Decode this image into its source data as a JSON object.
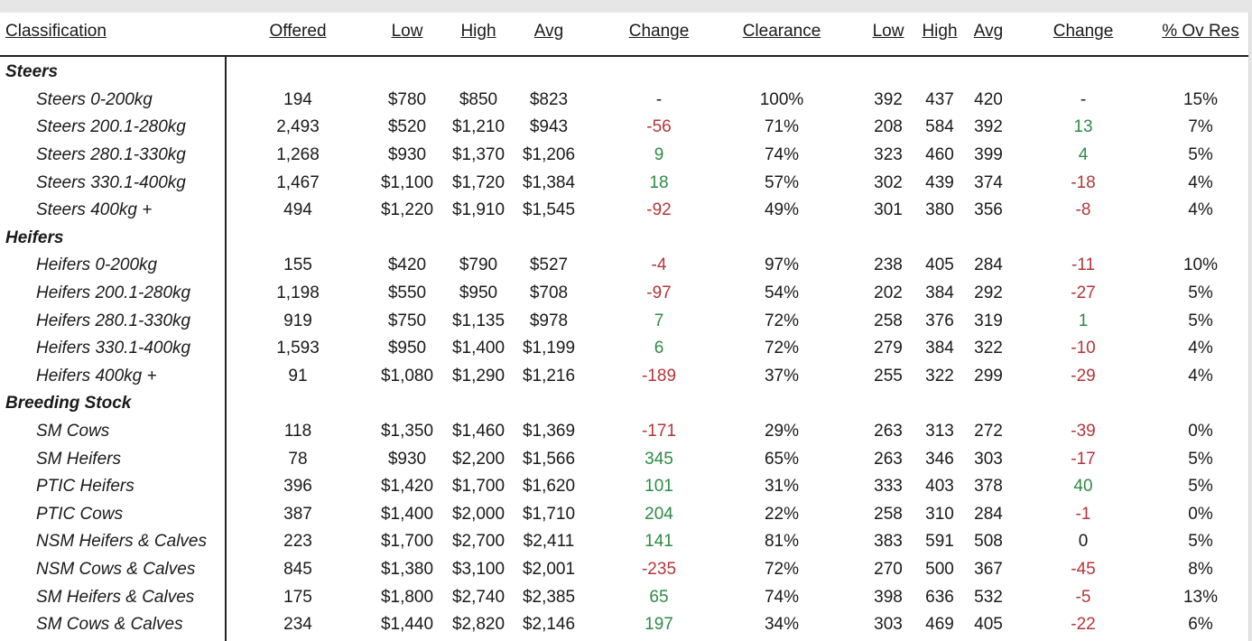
{
  "headers": [
    "Classification",
    "Offered",
    "Low",
    "High",
    "Avg",
    "Change",
    "Clearance",
    "Low",
    "High",
    "Avg",
    "Change",
    "% Ov Res"
  ],
  "rows": [
    {
      "type": "cat",
      "label": "Steers"
    },
    {
      "type": "item",
      "label": "Steers 0-200kg",
      "offered": "194",
      "low": "$780",
      "high": "$850",
      "avg": "$823",
      "change": "-",
      "clearance": "100%",
      "clow": "392",
      "chigh": "437",
      "cavg": "420",
      "cchange": "-",
      "ovres": "15%"
    },
    {
      "type": "item",
      "label": "Steers 200.1-280kg",
      "offered": "2,493",
      "low": "$520",
      "high": "$1,210",
      "avg": "$943",
      "change": "-56",
      "clearance": "71%",
      "clow": "208",
      "chigh": "584",
      "cavg": "392",
      "cchange": "13",
      "ovres": "7%"
    },
    {
      "type": "item",
      "label": "Steers 280.1-330kg",
      "offered": "1,268",
      "low": "$930",
      "high": "$1,370",
      "avg": "$1,206",
      "change": "9",
      "clearance": "74%",
      "clow": "323",
      "chigh": "460",
      "cavg": "399",
      "cchange": "4",
      "ovres": "5%"
    },
    {
      "type": "item",
      "label": "Steers 330.1-400kg",
      "offered": "1,467",
      "low": "$1,100",
      "high": "$1,720",
      "avg": "$1,384",
      "change": "18",
      "clearance": "57%",
      "clow": "302",
      "chigh": "439",
      "cavg": "374",
      "cchange": "-18",
      "ovres": "4%"
    },
    {
      "type": "item",
      "label": "Steers 400kg +",
      "offered": "494",
      "low": "$1,220",
      "high": "$1,910",
      "avg": "$1,545",
      "change": "-92",
      "clearance": "49%",
      "clow": "301",
      "chigh": "380",
      "cavg": "356",
      "cchange": "-8",
      "ovres": "4%"
    },
    {
      "type": "cat",
      "label": "Heifers"
    },
    {
      "type": "item",
      "label": "Heifers 0-200kg",
      "offered": "155",
      "low": "$420",
      "high": "$790",
      "avg": "$527",
      "change": "-4",
      "clearance": "97%",
      "clow": "238",
      "chigh": "405",
      "cavg": "284",
      "cchange": "-11",
      "ovres": "10%"
    },
    {
      "type": "item",
      "label": "Heifers 200.1-280kg",
      "offered": "1,198",
      "low": "$550",
      "high": "$950",
      "avg": "$708",
      "change": "-97",
      "clearance": "54%",
      "clow": "202",
      "chigh": "384",
      "cavg": "292",
      "cchange": "-27",
      "ovres": "5%"
    },
    {
      "type": "item",
      "label": "Heifers 280.1-330kg",
      "offered": "919",
      "low": "$750",
      "high": "$1,135",
      "avg": "$978",
      "change": "7",
      "clearance": "72%",
      "clow": "258",
      "chigh": "376",
      "cavg": "319",
      "cchange": "1",
      "ovres": "5%"
    },
    {
      "type": "item",
      "label": "Heifers 330.1-400kg",
      "offered": "1,593",
      "low": "$950",
      "high": "$1,400",
      "avg": "$1,199",
      "change": "6",
      "clearance": "72%",
      "clow": "279",
      "chigh": "384",
      "cavg": "322",
      "cchange": "-10",
      "ovres": "4%"
    },
    {
      "type": "item",
      "label": "Heifers 400kg +",
      "offered": "91",
      "low": "$1,080",
      "high": "$1,290",
      "avg": "$1,216",
      "change": "-189",
      "clearance": "37%",
      "clow": "255",
      "chigh": "322",
      "cavg": "299",
      "cchange": "-29",
      "ovres": "4%"
    },
    {
      "type": "cat",
      "label": "Breeding Stock"
    },
    {
      "type": "item",
      "label": "SM Cows",
      "offered": "118",
      "low": "$1,350",
      "high": "$1,460",
      "avg": "$1,369",
      "change": "-171",
      "clearance": "29%",
      "clow": "263",
      "chigh": "313",
      "cavg": "272",
      "cchange": "-39",
      "ovres": "0%"
    },
    {
      "type": "item",
      "label": "SM Heifers",
      "offered": "78",
      "low": "$930",
      "high": "$2,200",
      "avg": "$1,566",
      "change": "345",
      "clearance": "65%",
      "clow": "263",
      "chigh": "346",
      "cavg": "303",
      "cchange": "-17",
      "ovres": "5%"
    },
    {
      "type": "item",
      "label": "PTIC Heifers",
      "offered": "396",
      "low": "$1,420",
      "high": "$1,700",
      "avg": "$1,620",
      "change": "101",
      "clearance": "31%",
      "clow": "333",
      "chigh": "403",
      "cavg": "378",
      "cchange": "40",
      "ovres": "5%"
    },
    {
      "type": "item",
      "label": "PTIC Cows",
      "offered": "387",
      "low": "$1,400",
      "high": "$2,000",
      "avg": "$1,710",
      "change": "204",
      "clearance": "22%",
      "clow": "258",
      "chigh": "310",
      "cavg": "284",
      "cchange": "-1",
      "ovres": "0%"
    },
    {
      "type": "item",
      "label": "NSM Heifers & Calves",
      "offered": "223",
      "low": "$1,700",
      "high": "$2,700",
      "avg": "$2,411",
      "change": "141",
      "clearance": "81%",
      "clow": "383",
      "chigh": "591",
      "cavg": "508",
      "cchange": "0",
      "ovres": "5%"
    },
    {
      "type": "item",
      "label": "NSM Cows & Calves",
      "offered": "845",
      "low": "$1,380",
      "high": "$3,100",
      "avg": "$2,001",
      "change": "-235",
      "clearance": "72%",
      "clow": "270",
      "chigh": "500",
      "cavg": "367",
      "cchange": "-45",
      "ovres": "8%"
    },
    {
      "type": "item",
      "label": "SM Heifers & Calves",
      "offered": "175",
      "low": "$1,800",
      "high": "$2,740",
      "avg": "$2,385",
      "change": "65",
      "clearance": "74%",
      "clow": "398",
      "chigh": "636",
      "cavg": "532",
      "cchange": "-5",
      "ovres": "13%"
    },
    {
      "type": "item",
      "label": "SM Cows & Calves",
      "offered": "234",
      "low": "$1,440",
      "high": "$2,820",
      "avg": "$2,146",
      "change": "197",
      "clearance": "34%",
      "clow": "303",
      "chigh": "469",
      "cavg": "405",
      "cchange": "-22",
      "ovres": "6%"
    }
  ],
  "colors": {
    "negative": "#b3363a",
    "positive": "#2e8b47"
  }
}
